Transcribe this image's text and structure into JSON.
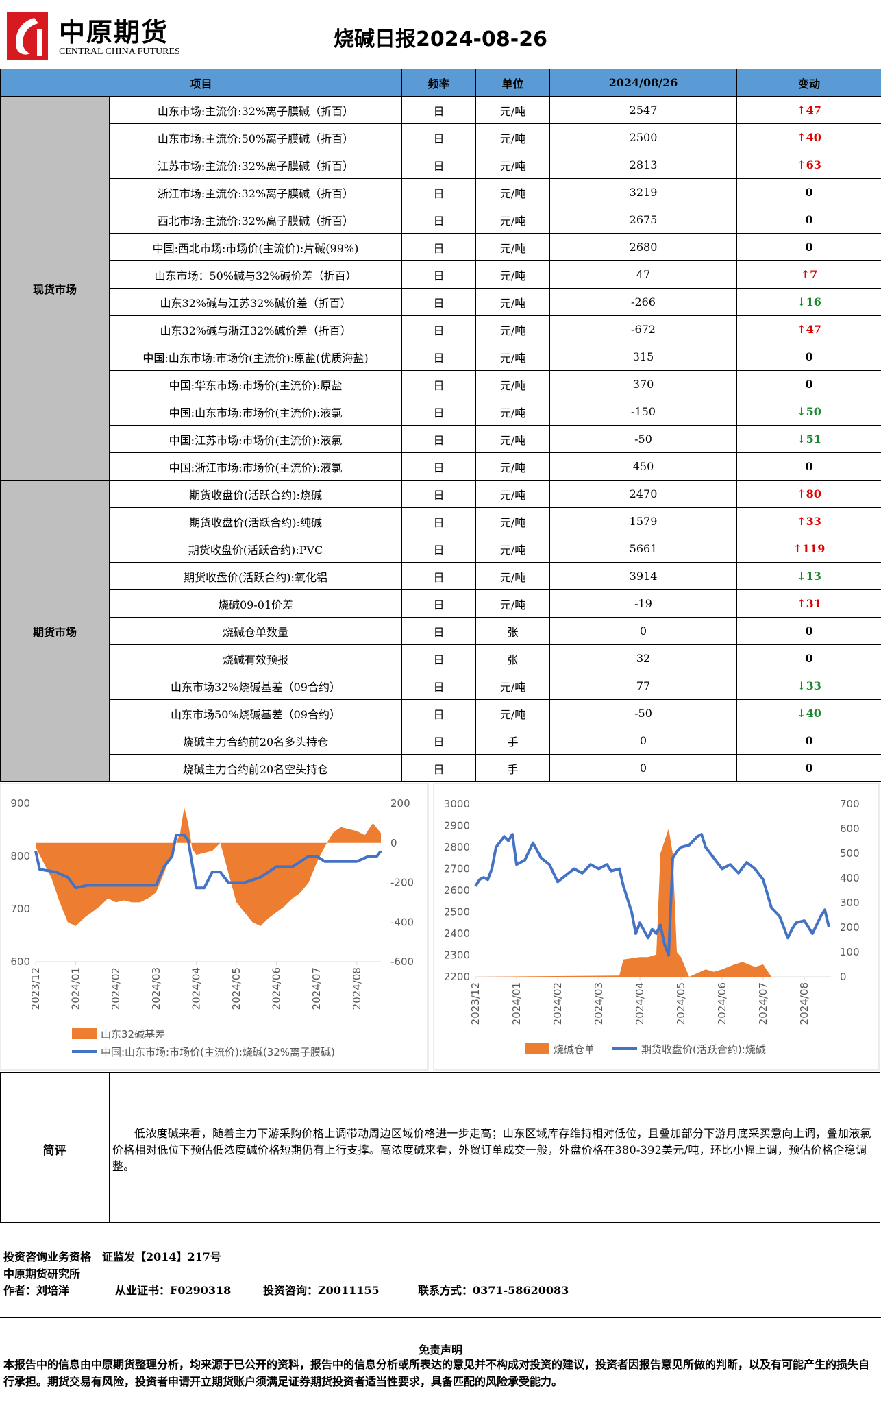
{
  "header": {
    "logo_cn": "中原期货",
    "logo_en": "CENTRAL CHINA FUTURES",
    "title": "烧碱日报2024-08-26"
  },
  "table": {
    "columns": [
      "项目",
      "频率",
      "单位",
      "2024/08/26",
      "变动"
    ],
    "sections": [
      {
        "name": "现货市场",
        "rows": [
          {
            "item": "山东市场:主流价:32%离子膜碱（折百）",
            "freq": "日",
            "unit": "元/吨",
            "value": 2547,
            "change": {
              "dir": "up",
              "value": 47
            }
          },
          {
            "item": "山东市场:主流价:50%离子膜碱（折百）",
            "freq": "日",
            "unit": "元/吨",
            "value": 2500,
            "change": {
              "dir": "up",
              "value": 40
            }
          },
          {
            "item": "江苏市场:主流价:32%离子膜碱（折百）",
            "freq": "日",
            "unit": "元/吨",
            "value": 2813,
            "change": {
              "dir": "up",
              "value": 63
            }
          },
          {
            "item": "浙江市场:主流价:32%离子膜碱（折百）",
            "freq": "日",
            "unit": "元/吨",
            "value": 3219,
            "change": {
              "dir": "flat",
              "value": 0
            }
          },
          {
            "item": "西北市场:主流价:32%离子膜碱（折百）",
            "freq": "日",
            "unit": "元/吨",
            "value": 2675,
            "change": {
              "dir": "flat",
              "value": 0
            }
          },
          {
            "item": "中国:西北市场:市场价(主流价):片碱(99%)",
            "freq": "日",
            "unit": "元/吨",
            "value": 2680,
            "change": {
              "dir": "flat",
              "value": 0
            }
          },
          {
            "item": "山东市场：50%碱与32%碱价差（折百）",
            "freq": "日",
            "unit": "元/吨",
            "value": 47,
            "change": {
              "dir": "up",
              "value": 7
            }
          },
          {
            "item": "山东32%碱与江苏32%碱价差（折百）",
            "freq": "日",
            "unit": "元/吨",
            "value": -266,
            "change": {
              "dir": "down",
              "value": 16
            }
          },
          {
            "item": "山东32%碱与浙江32%碱价差（折百）",
            "freq": "日",
            "unit": "元/吨",
            "value": -672,
            "change": {
              "dir": "up",
              "value": 47
            }
          },
          {
            "item": "中国:山东市场:市场价(主流价):原盐(优质海盐)",
            "freq": "日",
            "unit": "元/吨",
            "value": 315,
            "change": {
              "dir": "flat",
              "value": 0
            }
          },
          {
            "item": "中国:华东市场:市场价(主流价):原盐",
            "freq": "日",
            "unit": "元/吨",
            "value": 370,
            "change": {
              "dir": "flat",
              "value": 0
            }
          },
          {
            "item": "中国:山东市场:市场价(主流价):液氯",
            "freq": "日",
            "unit": "元/吨",
            "value": -150,
            "change": {
              "dir": "down",
              "value": 50
            }
          },
          {
            "item": "中国:江苏市场:市场价(主流价):液氯",
            "freq": "日",
            "unit": "元/吨",
            "value": -50,
            "change": {
              "dir": "down",
              "value": 51
            }
          },
          {
            "item": "中国:浙江市场:市场价(主流价):液氯",
            "freq": "日",
            "unit": "元/吨",
            "value": 450,
            "change": {
              "dir": "flat",
              "value": 0
            }
          }
        ]
      },
      {
        "name": "期货市场",
        "rows": [
          {
            "item": "期货收盘价(活跃合约):烧碱",
            "freq": "日",
            "unit": "元/吨",
            "value": 2470,
            "change": {
              "dir": "up",
              "value": 80
            }
          },
          {
            "item": "期货收盘价(活跃合约):纯碱",
            "freq": "日",
            "unit": "元/吨",
            "value": 1579,
            "change": {
              "dir": "up",
              "value": 33
            }
          },
          {
            "item": "期货收盘价(活跃合约):PVC",
            "freq": "日",
            "unit": "元/吨",
            "value": 5661,
            "change": {
              "dir": "up",
              "value": 119
            }
          },
          {
            "item": "期货收盘价(活跃合约):氧化铝",
            "freq": "日",
            "unit": "元/吨",
            "value": 3914,
            "change": {
              "dir": "down",
              "value": 13
            }
          },
          {
            "item": "烧碱09-01价差",
            "freq": "日",
            "unit": "元/吨",
            "value": -19,
            "change": {
              "dir": "up",
              "value": 31
            }
          },
          {
            "item": "烧碱仓单数量",
            "freq": "日",
            "unit": "张",
            "value": 0,
            "change": {
              "dir": "flat",
              "value": 0
            }
          },
          {
            "item": "烧碱有效预报",
            "freq": "日",
            "unit": "张",
            "value": 32,
            "change": {
              "dir": "flat",
              "value": 0
            }
          },
          {
            "item": "山东市场32%烧碱基差（09合约）",
            "freq": "日",
            "unit": "元/吨",
            "value": 77,
            "change": {
              "dir": "down",
              "value": 33
            }
          },
          {
            "item": "山东市场50%烧碱基差（09合约）",
            "freq": "日",
            "unit": "元/吨",
            "value": -50,
            "change": {
              "dir": "down",
              "value": 40
            }
          },
          {
            "item": "烧碱主力合约前20名多头持仓",
            "freq": "日",
            "unit": "手",
            "value": 0,
            "change": {
              "dir": "flat",
              "value": 0
            }
          },
          {
            "item": "烧碱主力合约前20名空头持仓",
            "freq": "日",
            "unit": "手",
            "value": 0,
            "change": {
              "dir": "flat",
              "value": 0
            }
          }
        ]
      }
    ]
  },
  "chart_data": [
    {
      "type": "line",
      "xlim": [
        0,
        8.6
      ],
      "xticks": [
        {
          "value": 0,
          "label": "2023/12"
        },
        {
          "value": 1,
          "label": "2024/01"
        },
        {
          "value": 2,
          "label": "2024/02"
        },
        {
          "value": 3,
          "label": "2024/03"
        },
        {
          "value": 4,
          "label": "2024/04"
        },
        {
          "value": 5,
          "label": "2024/05"
        },
        {
          "value": 6,
          "label": "2024/06"
        },
        {
          "value": 7,
          "label": "2024/07"
        },
        {
          "value": 8,
          "label": "2024/08"
        }
      ],
      "ylim": [
        600,
        900
      ],
      "yticks": [
        600,
        700,
        800,
        900
      ],
      "y2lim": [
        -600,
        200
      ],
      "y2ticks": [
        -600,
        -400,
        -200,
        0,
        200
      ],
      "series": [
        {
          "name": "山东32碱基差",
          "type": "area",
          "axis": "y2",
          "color": "#ed7d31",
          "x": [
            0,
            0.2,
            0.4,
            0.6,
            0.8,
            1.0,
            1.2,
            1.4,
            1.6,
            1.8,
            2.0,
            2.2,
            2.4,
            2.6,
            2.8,
            3.0,
            3.2,
            3.4,
            3.6,
            3.7,
            3.8,
            3.9,
            4.0,
            4.2,
            4.4,
            4.6,
            4.8,
            5.0,
            5.2,
            5.4,
            5.6,
            5.8,
            6.0,
            6.2,
            6.4,
            6.6,
            6.8,
            7.0,
            7.2,
            7.4,
            7.6,
            7.8,
            8.0,
            8.2,
            8.4,
            8.6
          ],
          "values": [
            -20,
            -100,
            -180,
            -300,
            -400,
            -420,
            -380,
            -350,
            -320,
            -280,
            -300,
            -290,
            -300,
            -300,
            -280,
            -250,
            -150,
            -50,
            50,
            180,
            100,
            -30,
            -60,
            -50,
            -40,
            0,
            -150,
            -300,
            -350,
            -400,
            -420,
            -380,
            -350,
            -320,
            -280,
            -250,
            -200,
            -100,
            -20,
            50,
            80,
            70,
            60,
            40,
            100,
            50
          ]
        },
        {
          "name": "中国:山东市场:市场价(主流价):烧碱(32%离子膜碱)",
          "type": "line",
          "color": "#4472c4",
          "x": [
            0,
            0.1,
            0.5,
            0.8,
            1.0,
            1.3,
            1.6,
            2.0,
            2.5,
            3.0,
            3.2,
            3.4,
            3.5,
            3.7,
            3.8,
            4.0,
            4.2,
            4.4,
            4.6,
            4.8,
            5.2,
            5.6,
            5.8,
            6.0,
            6.4,
            6.6,
            6.8,
            7.0,
            7.2,
            7.6,
            8.0,
            8.3,
            8.5,
            8.6
          ],
          "values": [
            810,
            775,
            770,
            760,
            740,
            745,
            745,
            745,
            745,
            745,
            780,
            800,
            840,
            840,
            830,
            740,
            740,
            770,
            770,
            750,
            750,
            760,
            770,
            780,
            780,
            790,
            800,
            800,
            790,
            790,
            790,
            800,
            800,
            810
          ]
        }
      ]
    },
    {
      "type": "line",
      "xlim": [
        0,
        8.65
      ],
      "xticks": [
        {
          "value": 0,
          "label": "2023/12"
        },
        {
          "value": 1,
          "label": "2024/01"
        },
        {
          "value": 2,
          "label": "2024/02"
        },
        {
          "value": 3,
          "label": "2024/03"
        },
        {
          "value": 4,
          "label": "2024/04"
        },
        {
          "value": 5,
          "label": "2024/05"
        },
        {
          "value": 6,
          "label": "2024/06"
        },
        {
          "value": 7,
          "label": "2024/07"
        },
        {
          "value": 8,
          "label": "2024/08"
        }
      ],
      "ylim": [
        2200,
        3000
      ],
      "yticks": [
        2200,
        2300,
        2400,
        2500,
        2600,
        2700,
        2800,
        2900,
        3000
      ],
      "y2lim": [
        0,
        700
      ],
      "y2ticks": [
        0,
        100,
        200,
        300,
        400,
        500,
        600,
        700
      ],
      "series": [
        {
          "name": "烧碱仓单",
          "type": "area",
          "axis": "y2",
          "color": "#ed7d31",
          "x": [
            0,
            3.5,
            3.6,
            4.0,
            4.2,
            4.4,
            4.5,
            4.6,
            4.7,
            4.8,
            4.9,
            5.0,
            5.2,
            5.6,
            5.8,
            6.0,
            6.3,
            6.5,
            6.8,
            7.0,
            7.2,
            8.6
          ],
          "values": [
            0,
            5,
            70,
            80,
            80,
            90,
            500,
            550,
            600,
            500,
            100,
            80,
            0,
            30,
            20,
            30,
            50,
            60,
            40,
            50,
            0,
            0
          ]
        },
        {
          "name": "期货收盘价(活跃合约):烧碱",
          "type": "line",
          "color": "#4472c4",
          "x": [
            0,
            0.1,
            0.2,
            0.3,
            0.4,
            0.5,
            0.7,
            0.8,
            0.9,
            1.0,
            1.2,
            1.4,
            1.6,
            1.8,
            2.0,
            2.2,
            2.4,
            2.6,
            2.8,
            3.0,
            3.2,
            3.3,
            3.5,
            3.6,
            3.8,
            3.9,
            4.0,
            4.2,
            4.3,
            4.4,
            4.5,
            4.6,
            4.7,
            4.8,
            4.9,
            5.0,
            5.2,
            5.4,
            5.5,
            5.6,
            5.8,
            6.0,
            6.2,
            6.4,
            6.6,
            6.8,
            7.0,
            7.2,
            7.4,
            7.6,
            7.7,
            7.8,
            8.0,
            8.2,
            8.4,
            8.5,
            8.6
          ],
          "values": [
            2620,
            2650,
            2660,
            2650,
            2700,
            2800,
            2850,
            2830,
            2860,
            2720,
            2740,
            2820,
            2750,
            2720,
            2640,
            2670,
            2700,
            2680,
            2720,
            2700,
            2720,
            2690,
            2700,
            2620,
            2500,
            2400,
            2450,
            2380,
            2420,
            2400,
            2440,
            2350,
            2300,
            2750,
            2780,
            2800,
            2810,
            2850,
            2860,
            2800,
            2750,
            2700,
            2720,
            2680,
            2730,
            2700,
            2650,
            2520,
            2480,
            2380,
            2420,
            2450,
            2460,
            2400,
            2480,
            2510,
            2430
          ]
        }
      ]
    }
  ],
  "comment": {
    "label": "简评",
    "text": "低浓度碱来看，随着主力下游采购价格上调带动周边区域价格进一步走高；山东区域库存维持相对低位，且叠加部分下游月底采买意向上调，叠加液氯价格相对低位下预估低浓度碱价格短期仍有上行支撑。高浓度碱来看，外贸订单成交一般，外盘价格在380-392美元/吨，环比小幅上调，预估价格企稳调整。"
  },
  "info": {
    "qualification": "投资咨询业务资格　证监发【2014】217号",
    "institute": "中原期货研究所",
    "author": "作者：刘培洋",
    "license": "从业证书：F0290318",
    "consult": "投资咨询：Z0011155",
    "contact": "联系方式：0371-58620083"
  },
  "disclaimer": {
    "title": "免责声明",
    "text": "本报告中的信息由中原期货整理分析，均来源于已公开的资料，报告中的信息分析或所表达的意见并不构成对投资的建议，投资者因报告意见所做的判断，以及有可能产生的损失自行承担。期货交易有风险，投资者申请开立期货账户须满足证券期货投资者适当性要求，具备匹配的风险承受能力。"
  }
}
